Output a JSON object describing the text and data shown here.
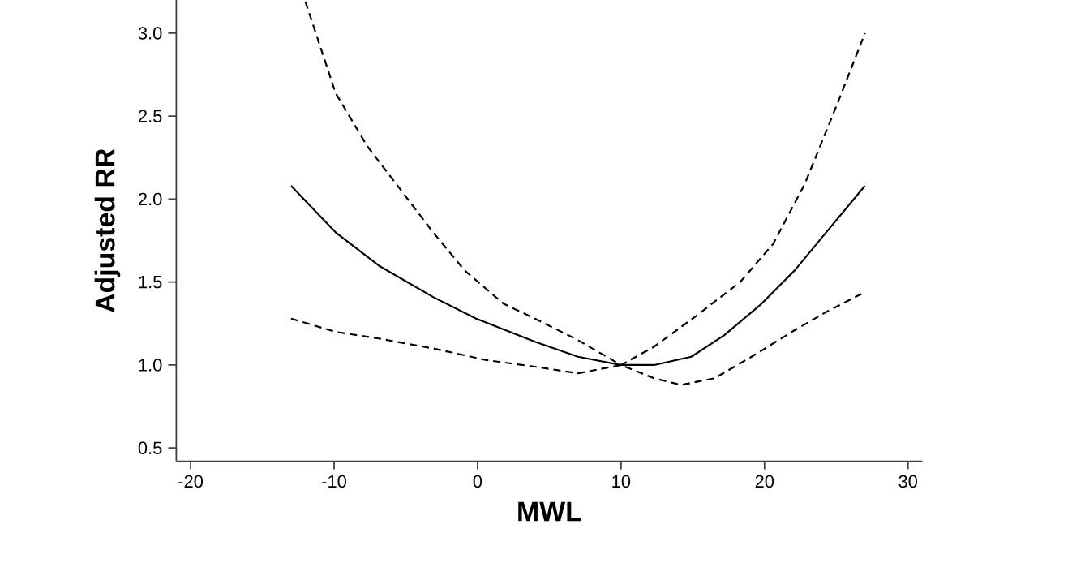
{
  "chart_data": {
    "type": "line",
    "xlabel": "MWL",
    "ylabel": "Adjusted RR",
    "xlim": [
      -21,
      31
    ],
    "ylim": [
      0.42,
      3.2
    ],
    "xticks": [
      -20,
      -10,
      0,
      10,
      20,
      30
    ],
    "yticks": [
      {
        "value": 0.5,
        "label": "0.5"
      },
      {
        "value": 1.0,
        "label": "1.0"
      },
      {
        "value": 1.5,
        "label": "1.5"
      },
      {
        "value": 2.0,
        "label": "2.0"
      },
      {
        "value": 2.5,
        "label": "2.5"
      },
      {
        "value": 3.0,
        "label": "3.0"
      }
    ],
    "grid": false,
    "marker": "none",
    "series": [
      {
        "color": "#000000",
        "line_style": "solid",
        "x": [
          -13,
          -9.9,
          -6.9,
          -3.1,
          -0.1,
          4.0,
          7.0,
          10,
          12.3,
          14.9,
          17.2,
          19.8,
          22.1,
          24.3,
          27.0
        ],
        "values": [
          2.08,
          1.8,
          1.6,
          1.41,
          1.28,
          1.14,
          1.05,
          1.0,
          1.0,
          1.05,
          1.18,
          1.37,
          1.57,
          1.8,
          2.08
        ]
      },
      {
        "color": "#000000",
        "line_style": "dashed",
        "x": [
          -12.0,
          -9.9,
          -7.7,
          -5.4,
          -3.1,
          -0.9,
          1.8,
          4.0,
          7.0,
          10,
          12.3,
          15.3,
          18.3,
          20.6,
          22.8,
          25.1,
          27.0
        ],
        "values": [
          3.19,
          2.64,
          2.32,
          2.06,
          1.8,
          1.57,
          1.37,
          1.28,
          1.15,
          1.0,
          1.11,
          1.3,
          1.5,
          1.73,
          2.09,
          2.58,
          3.0
        ]
      },
      {
        "color": "#000000",
        "line_style": "dashed",
        "x": [
          -13,
          -9.9,
          -6.9,
          -3.1,
          0.6,
          4.0,
          7.0,
          10,
          12.3,
          14.2,
          16.5,
          19.1,
          22.1,
          24.3,
          27.0
        ],
        "values": [
          1.28,
          1.2,
          1.16,
          1.1,
          1.03,
          0.99,
          0.95,
          1.0,
          0.92,
          0.88,
          0.92,
          1.05,
          1.21,
          1.32,
          1.44
        ]
      }
    ]
  }
}
